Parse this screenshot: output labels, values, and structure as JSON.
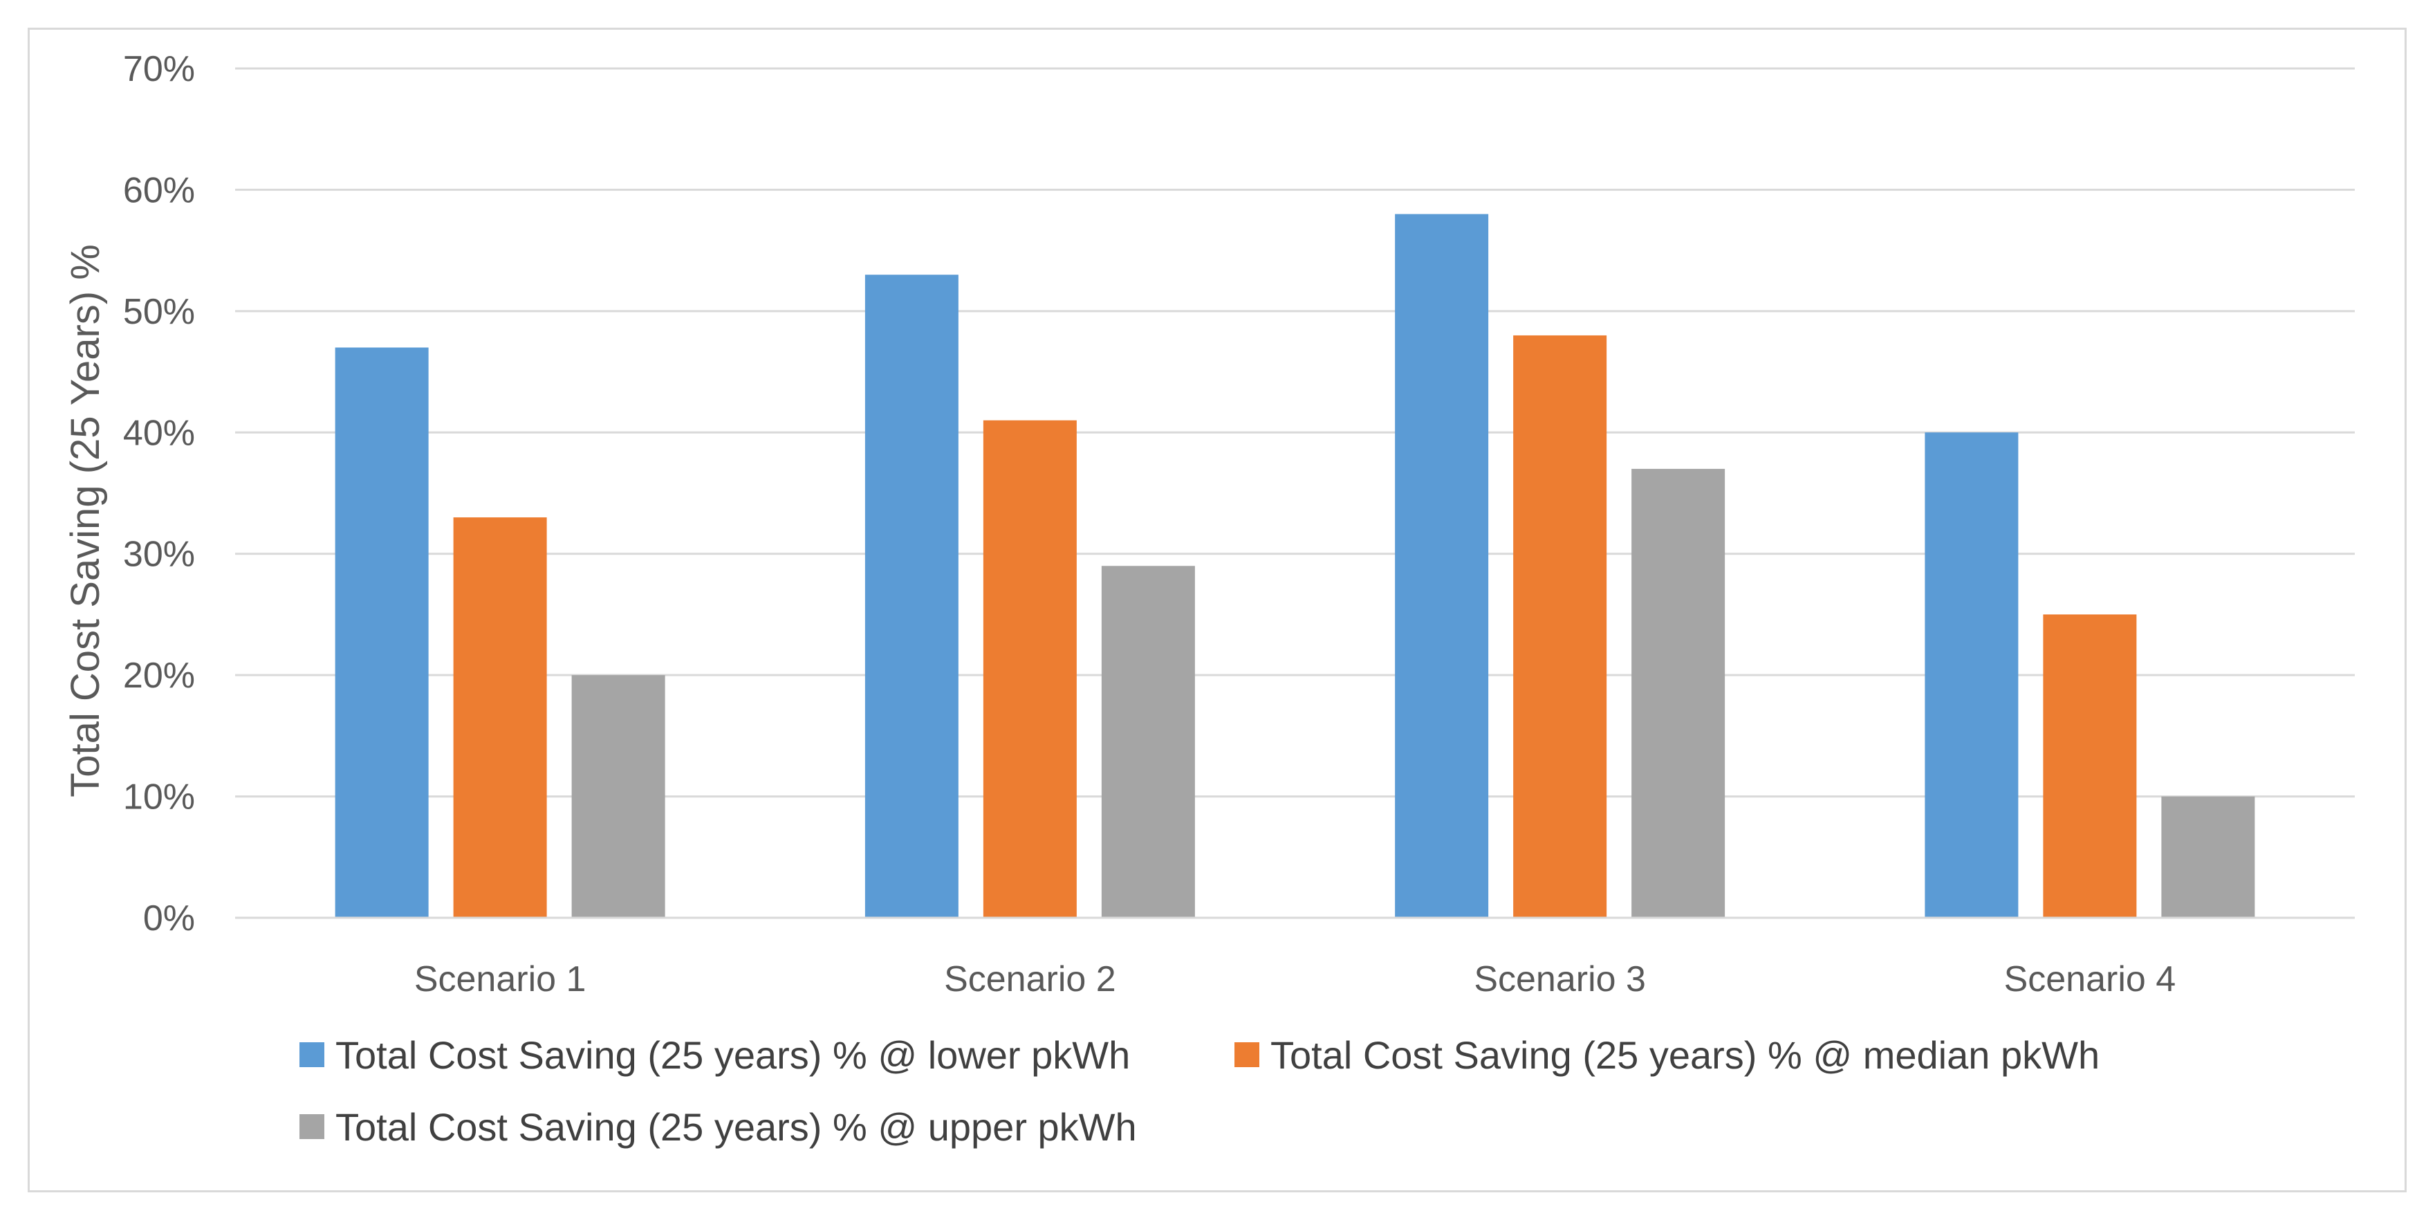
{
  "chart_data": {
    "type": "bar",
    "title": "",
    "xlabel": "",
    "ylabel": "Total Cost Saving (25 Years) %",
    "ylim": [
      0,
      0.7
    ],
    "yticks": [
      0,
      0.1,
      0.2,
      0.3,
      0.4,
      0.5,
      0.6,
      0.7
    ],
    "ytick_labels": [
      "0%",
      "10%",
      "20%",
      "30%",
      "40%",
      "50%",
      "60%",
      "70%"
    ],
    "grid": true,
    "legend_position": "bottom",
    "categories": [
      "Scenario 1",
      "Scenario 2",
      "Scenario 3",
      "Scenario 4"
    ],
    "series": [
      {
        "name": "Total Cost Saving (25 years) % @ lower pkWh",
        "color": "#5b9bd5",
        "values": [
          0.47,
          0.53,
          0.58,
          0.4
        ]
      },
      {
        "name": "Total Cost Saving (25 years) % @ median pkWh",
        "color": "#ed7d31",
        "values": [
          0.33,
          0.41,
          0.48,
          0.25
        ]
      },
      {
        "name": "Total Cost Saving (25 years) % @ upper pkWh",
        "color": "#a5a5a5",
        "values": [
          0.2,
          0.29,
          0.37,
          0.1
        ]
      }
    ]
  },
  "colors": {
    "gridline": "#d9d9d9",
    "axis_line": "#d9d9d9",
    "text": "#595959"
  }
}
